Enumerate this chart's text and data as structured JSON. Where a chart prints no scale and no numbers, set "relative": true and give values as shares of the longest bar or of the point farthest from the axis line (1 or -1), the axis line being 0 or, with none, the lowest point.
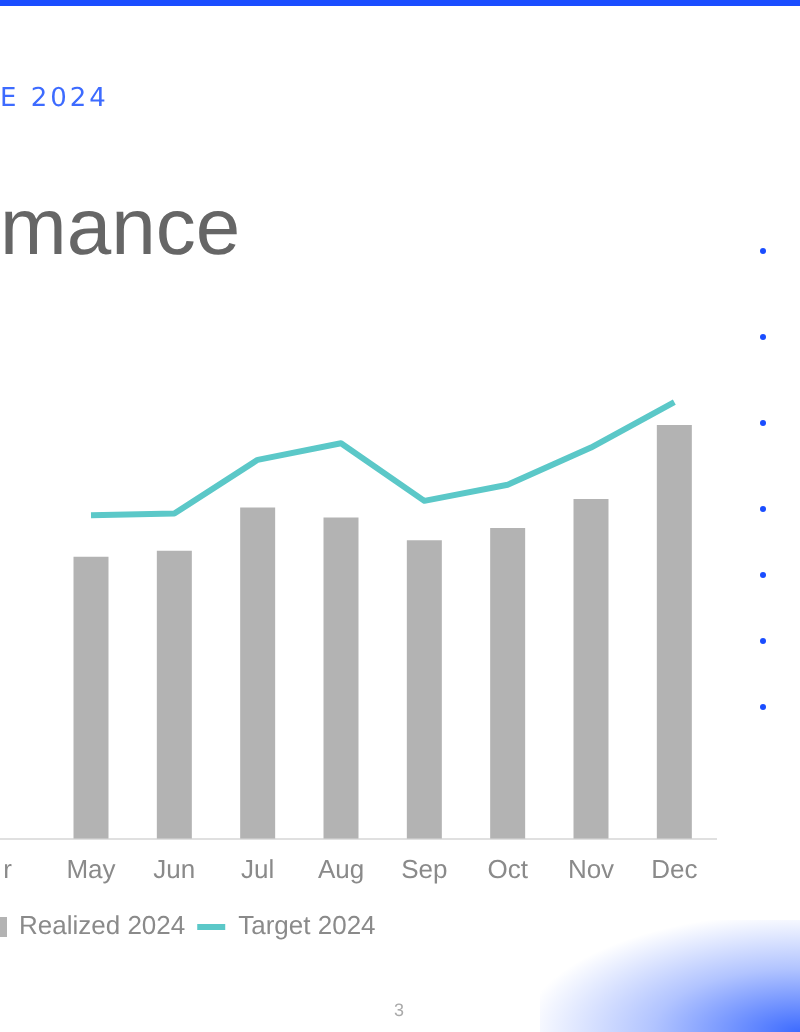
{
  "chart_data": {
    "type": "bar",
    "subtitle": "E 2024",
    "title": "mance",
    "categories": [
      "r",
      "May",
      "Jun",
      "Jul",
      "Aug",
      "Sep",
      "Oct",
      "Nov",
      "Dec"
    ],
    "relative": true,
    "series": [
      {
        "name": "Realized 2024",
        "color": "#b3b3b3",
        "values": [
          null,
          0.646,
          0.66,
          0.759,
          0.736,
          0.684,
          0.712,
          0.778,
          0.948
        ]
      },
      {
        "name": "Target 2024",
        "type": "line",
        "color": "#5bc8c8",
        "values": [
          null,
          0.741,
          0.745,
          0.868,
          0.906,
          0.774,
          0.811,
          0.896,
          1
        ]
      }
    ],
    "legend": "bottom",
    "grid": false,
    "marker": "none",
    "annotations": [
      "3"
    ]
  }
}
